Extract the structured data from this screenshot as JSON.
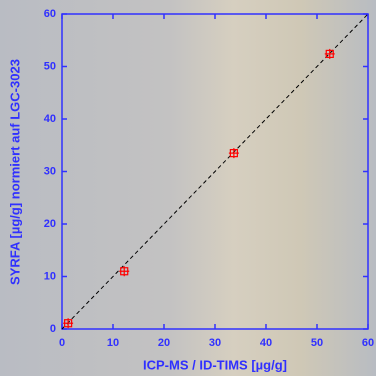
{
  "chart_data": {
    "type": "scatter",
    "x_label": "ICP-MS / ID-TIMS  [µg/g]",
    "y_label": "SYRFA [µg/g] normiert auf LGC-3023",
    "series": [
      {
        "color": "#ff0000",
        "x": [
          1.2,
          12.2,
          33.7,
          52.5
        ],
        "values": [
          1.1,
          11.0,
          33.5,
          52.4
        ]
      }
    ],
    "xlim": [
      0,
      60
    ],
    "ylim": [
      0,
      60
    ],
    "xticks": [
      0,
      10,
      20,
      30,
      40,
      50,
      60
    ],
    "yticks": [
      0,
      10,
      20,
      30,
      40,
      50,
      60
    ],
    "identity_line": true
  }
}
